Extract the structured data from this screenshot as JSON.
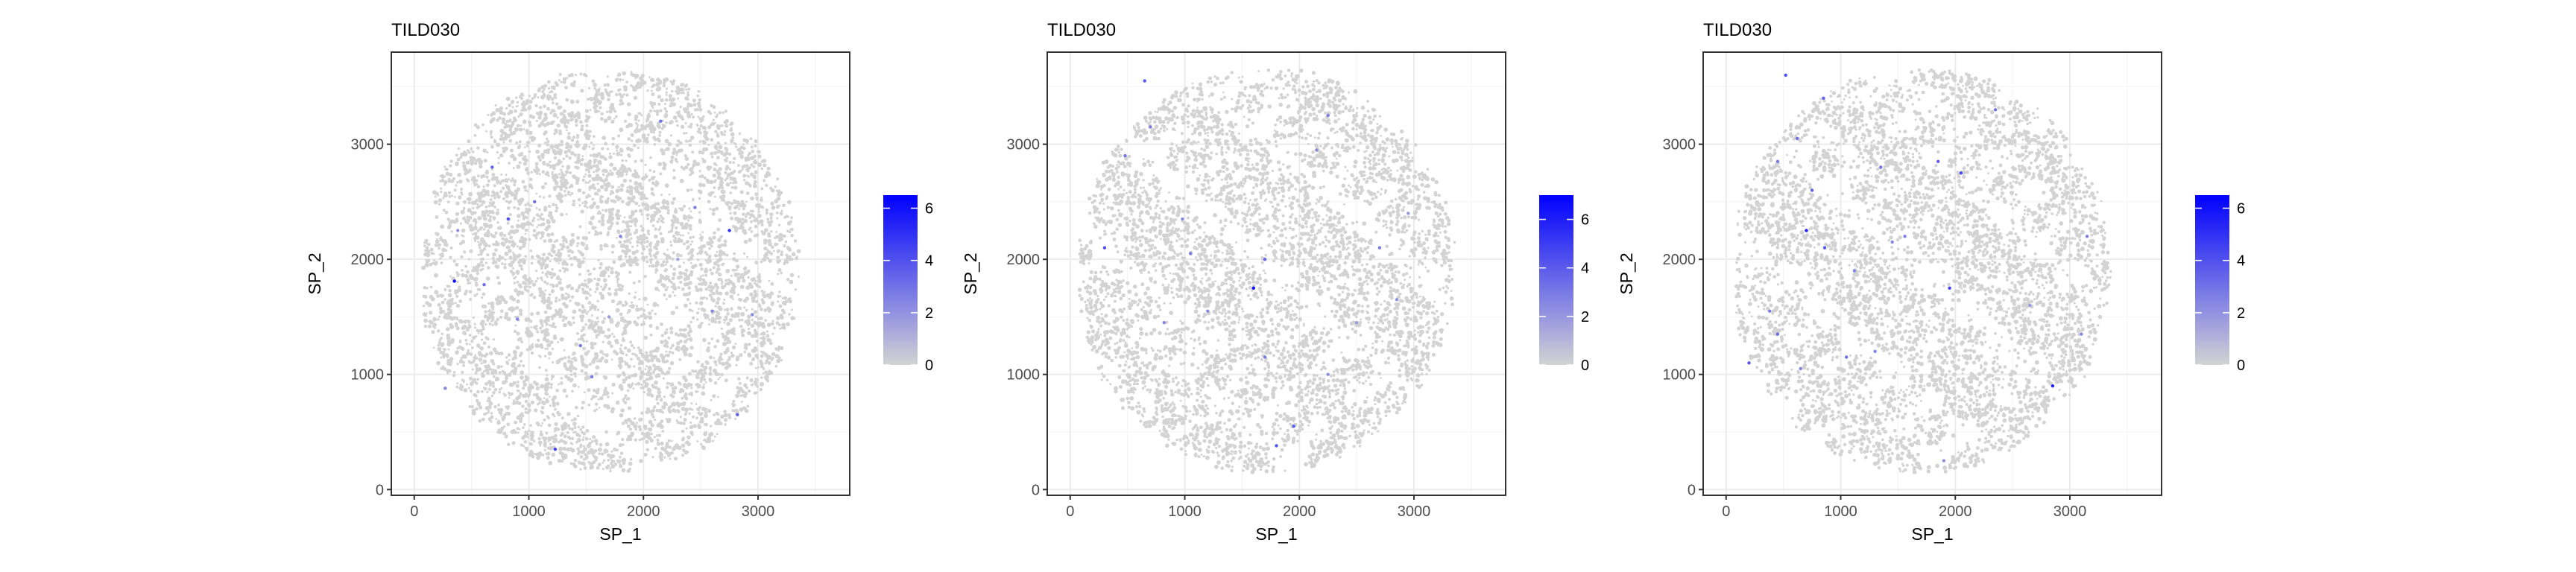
{
  "figure": {
    "colors": {
      "background": "#ffffff",
      "panel_border": "#333333",
      "grid_major": "#ebebeb",
      "grid_minor": "#f5f5f5",
      "low": "#d3d3d3",
      "high": "#0000ff",
      "text": "#000000",
      "tick_text": "#4d4d4d"
    }
  },
  "chart_data": [
    {
      "type": "scatter",
      "title": "TILD030",
      "xlabel": "SP_1",
      "ylabel": "SP_2",
      "xlim": [
        -200,
        3800
      ],
      "ylim": [
        -50,
        3800
      ],
      "x_ticks": [
        0,
        1000,
        2000,
        3000
      ],
      "x_tick_labels": [
        "0",
        "1000",
        "2000",
        "3000"
      ],
      "y_ticks": [
        0,
        1000,
        2000,
        3000
      ],
      "y_tick_labels": [
        "0",
        "1000",
        "2000",
        "3000"
      ],
      "grid": true,
      "legend": {
        "position": "right",
        "type": "colorbar",
        "ticks": [
          0,
          2,
          4,
          6
        ],
        "tick_labels": [
          "0",
          "2",
          "4",
          "6"
        ],
        "min": 0,
        "max": 6.5
      },
      "background_value": 0,
      "highlight_points": [
        {
          "x": 350,
          "y": 1810,
          "value": 6.2
        },
        {
          "x": 680,
          "y": 2800,
          "value": 3.5
        },
        {
          "x": 820,
          "y": 2350,
          "value": 4.0
        },
        {
          "x": 1050,
          "y": 2500,
          "value": 3.0
        },
        {
          "x": 610,
          "y": 1780,
          "value": 3.2
        },
        {
          "x": 900,
          "y": 1480,
          "value": 2.5
        },
        {
          "x": 1450,
          "y": 1250,
          "value": 3.0
        },
        {
          "x": 1550,
          "y": 980,
          "value": 2.8
        },
        {
          "x": 1230,
          "y": 350,
          "value": 4.5
        },
        {
          "x": 1800,
          "y": 2200,
          "value": 2.5
        },
        {
          "x": 2150,
          "y": 3200,
          "value": 3.0
        },
        {
          "x": 2450,
          "y": 2450,
          "value": 2.7
        },
        {
          "x": 2600,
          "y": 1550,
          "value": 2.5
        },
        {
          "x": 2750,
          "y": 2250,
          "value": 5.0
        },
        {
          "x": 2950,
          "y": 1520,
          "value": 2.3
        },
        {
          "x": 2820,
          "y": 650,
          "value": 3.5
        },
        {
          "x": 1700,
          "y": 1500,
          "value": 1.8
        },
        {
          "x": 380,
          "y": 2250,
          "value": 2.0
        },
        {
          "x": 270,
          "y": 880,
          "value": 2.5
        },
        {
          "x": 2300,
          "y": 2000,
          "value": 1.5
        }
      ]
    },
    {
      "type": "scatter",
      "title": "TILD030",
      "xlabel": "SP_1",
      "ylabel": "SP_2",
      "xlim": [
        -200,
        3800
      ],
      "ylim": [
        -50,
        3800
      ],
      "x_ticks": [
        0,
        1000,
        2000,
        3000
      ],
      "x_tick_labels": [
        "0",
        "1000",
        "2000",
        "3000"
      ],
      "y_ticks": [
        0,
        1000,
        2000,
        3000
      ],
      "y_tick_labels": [
        "0",
        "1000",
        "2000",
        "3000"
      ],
      "grid": true,
      "legend": {
        "position": "right",
        "type": "colorbar",
        "ticks": [
          0,
          2,
          4,
          6
        ],
        "tick_labels": [
          "0",
          "2",
          "4",
          "6"
        ],
        "min": 0,
        "max": 7.0
      },
      "background_value": 0,
      "highlight_points": [
        {
          "x": 650,
          "y": 3550,
          "value": 4.0
        },
        {
          "x": 700,
          "y": 3150,
          "value": 3.0
        },
        {
          "x": 480,
          "y": 2900,
          "value": 3.2
        },
        {
          "x": 300,
          "y": 2100,
          "value": 4.2
        },
        {
          "x": 1050,
          "y": 2050,
          "value": 3.0
        },
        {
          "x": 1700,
          "y": 2000,
          "value": 3.5
        },
        {
          "x": 1600,
          "y": 1750,
          "value": 6.5
        },
        {
          "x": 1200,
          "y": 1550,
          "value": 2.5
        },
        {
          "x": 820,
          "y": 1450,
          "value": 2.6
        },
        {
          "x": 1700,
          "y": 1150,
          "value": 3.0
        },
        {
          "x": 1950,
          "y": 550,
          "value": 3.8
        },
        {
          "x": 1800,
          "y": 380,
          "value": 4.2
        },
        {
          "x": 2250,
          "y": 3250,
          "value": 3.0
        },
        {
          "x": 2150,
          "y": 2950,
          "value": 2.5
        },
        {
          "x": 2700,
          "y": 2100,
          "value": 3.0
        },
        {
          "x": 2950,
          "y": 2400,
          "value": 2.0
        },
        {
          "x": 2850,
          "y": 1650,
          "value": 2.2
        },
        {
          "x": 2500,
          "y": 1450,
          "value": 1.8
        },
        {
          "x": 2250,
          "y": 1000,
          "value": 2.3
        },
        {
          "x": 980,
          "y": 2350,
          "value": 2.4
        }
      ]
    },
    {
      "type": "scatter",
      "title": "TILD030",
      "xlabel": "SP_1",
      "ylabel": "SP_2",
      "xlim": [
        -200,
        3800
      ],
      "ylim": [
        -50,
        3800
      ],
      "x_ticks": [
        0,
        1000,
        2000,
        3000
      ],
      "x_tick_labels": [
        "0",
        "1000",
        "2000",
        "3000"
      ],
      "y_ticks": [
        0,
        1000,
        2000,
        3000
      ],
      "y_tick_labels": [
        "0",
        "1000",
        "2000",
        "3000"
      ],
      "grid": true,
      "legend": {
        "position": "right",
        "type": "colorbar",
        "ticks": [
          0,
          2,
          4,
          6
        ],
        "tick_labels": [
          "0",
          "2",
          "4",
          "6"
        ],
        "min": 0,
        "max": 6.5
      },
      "background_value": 0,
      "highlight_points": [
        {
          "x": 520,
          "y": 3600,
          "value": 4.0
        },
        {
          "x": 850,
          "y": 3400,
          "value": 3.5
        },
        {
          "x": 620,
          "y": 3050,
          "value": 3.0
        },
        {
          "x": 450,
          "y": 2850,
          "value": 2.8
        },
        {
          "x": 750,
          "y": 2600,
          "value": 3.5
        },
        {
          "x": 700,
          "y": 2250,
          "value": 5.5
        },
        {
          "x": 860,
          "y": 2100,
          "value": 3.8
        },
        {
          "x": 1350,
          "y": 2800,
          "value": 3.0
        },
        {
          "x": 1450,
          "y": 2150,
          "value": 2.5
        },
        {
          "x": 1850,
          "y": 2850,
          "value": 3.5
        },
        {
          "x": 2050,
          "y": 2750,
          "value": 4.2
        },
        {
          "x": 2350,
          "y": 3300,
          "value": 3.0
        },
        {
          "x": 1950,
          "y": 1750,
          "value": 4.5
        },
        {
          "x": 1560,
          "y": 2200,
          "value": 2.6
        },
        {
          "x": 1120,
          "y": 1900,
          "value": 2.4
        },
        {
          "x": 450,
          "y": 1350,
          "value": 3.2
        },
        {
          "x": 380,
          "y": 1550,
          "value": 2.7
        },
        {
          "x": 200,
          "y": 1100,
          "value": 3.8
        },
        {
          "x": 650,
          "y": 1050,
          "value": 2.5
        },
        {
          "x": 1050,
          "y": 1150,
          "value": 3.2
        },
        {
          "x": 1300,
          "y": 1200,
          "value": 2.6
        },
        {
          "x": 2850,
          "y": 900,
          "value": 5.5
        },
        {
          "x": 3100,
          "y": 1350,
          "value": 2.3
        },
        {
          "x": 3150,
          "y": 2200,
          "value": 2.5
        },
        {
          "x": 1900,
          "y": 250,
          "value": 2.0
        },
        {
          "x": 2650,
          "y": 1600,
          "value": 1.8
        }
      ]
    }
  ]
}
